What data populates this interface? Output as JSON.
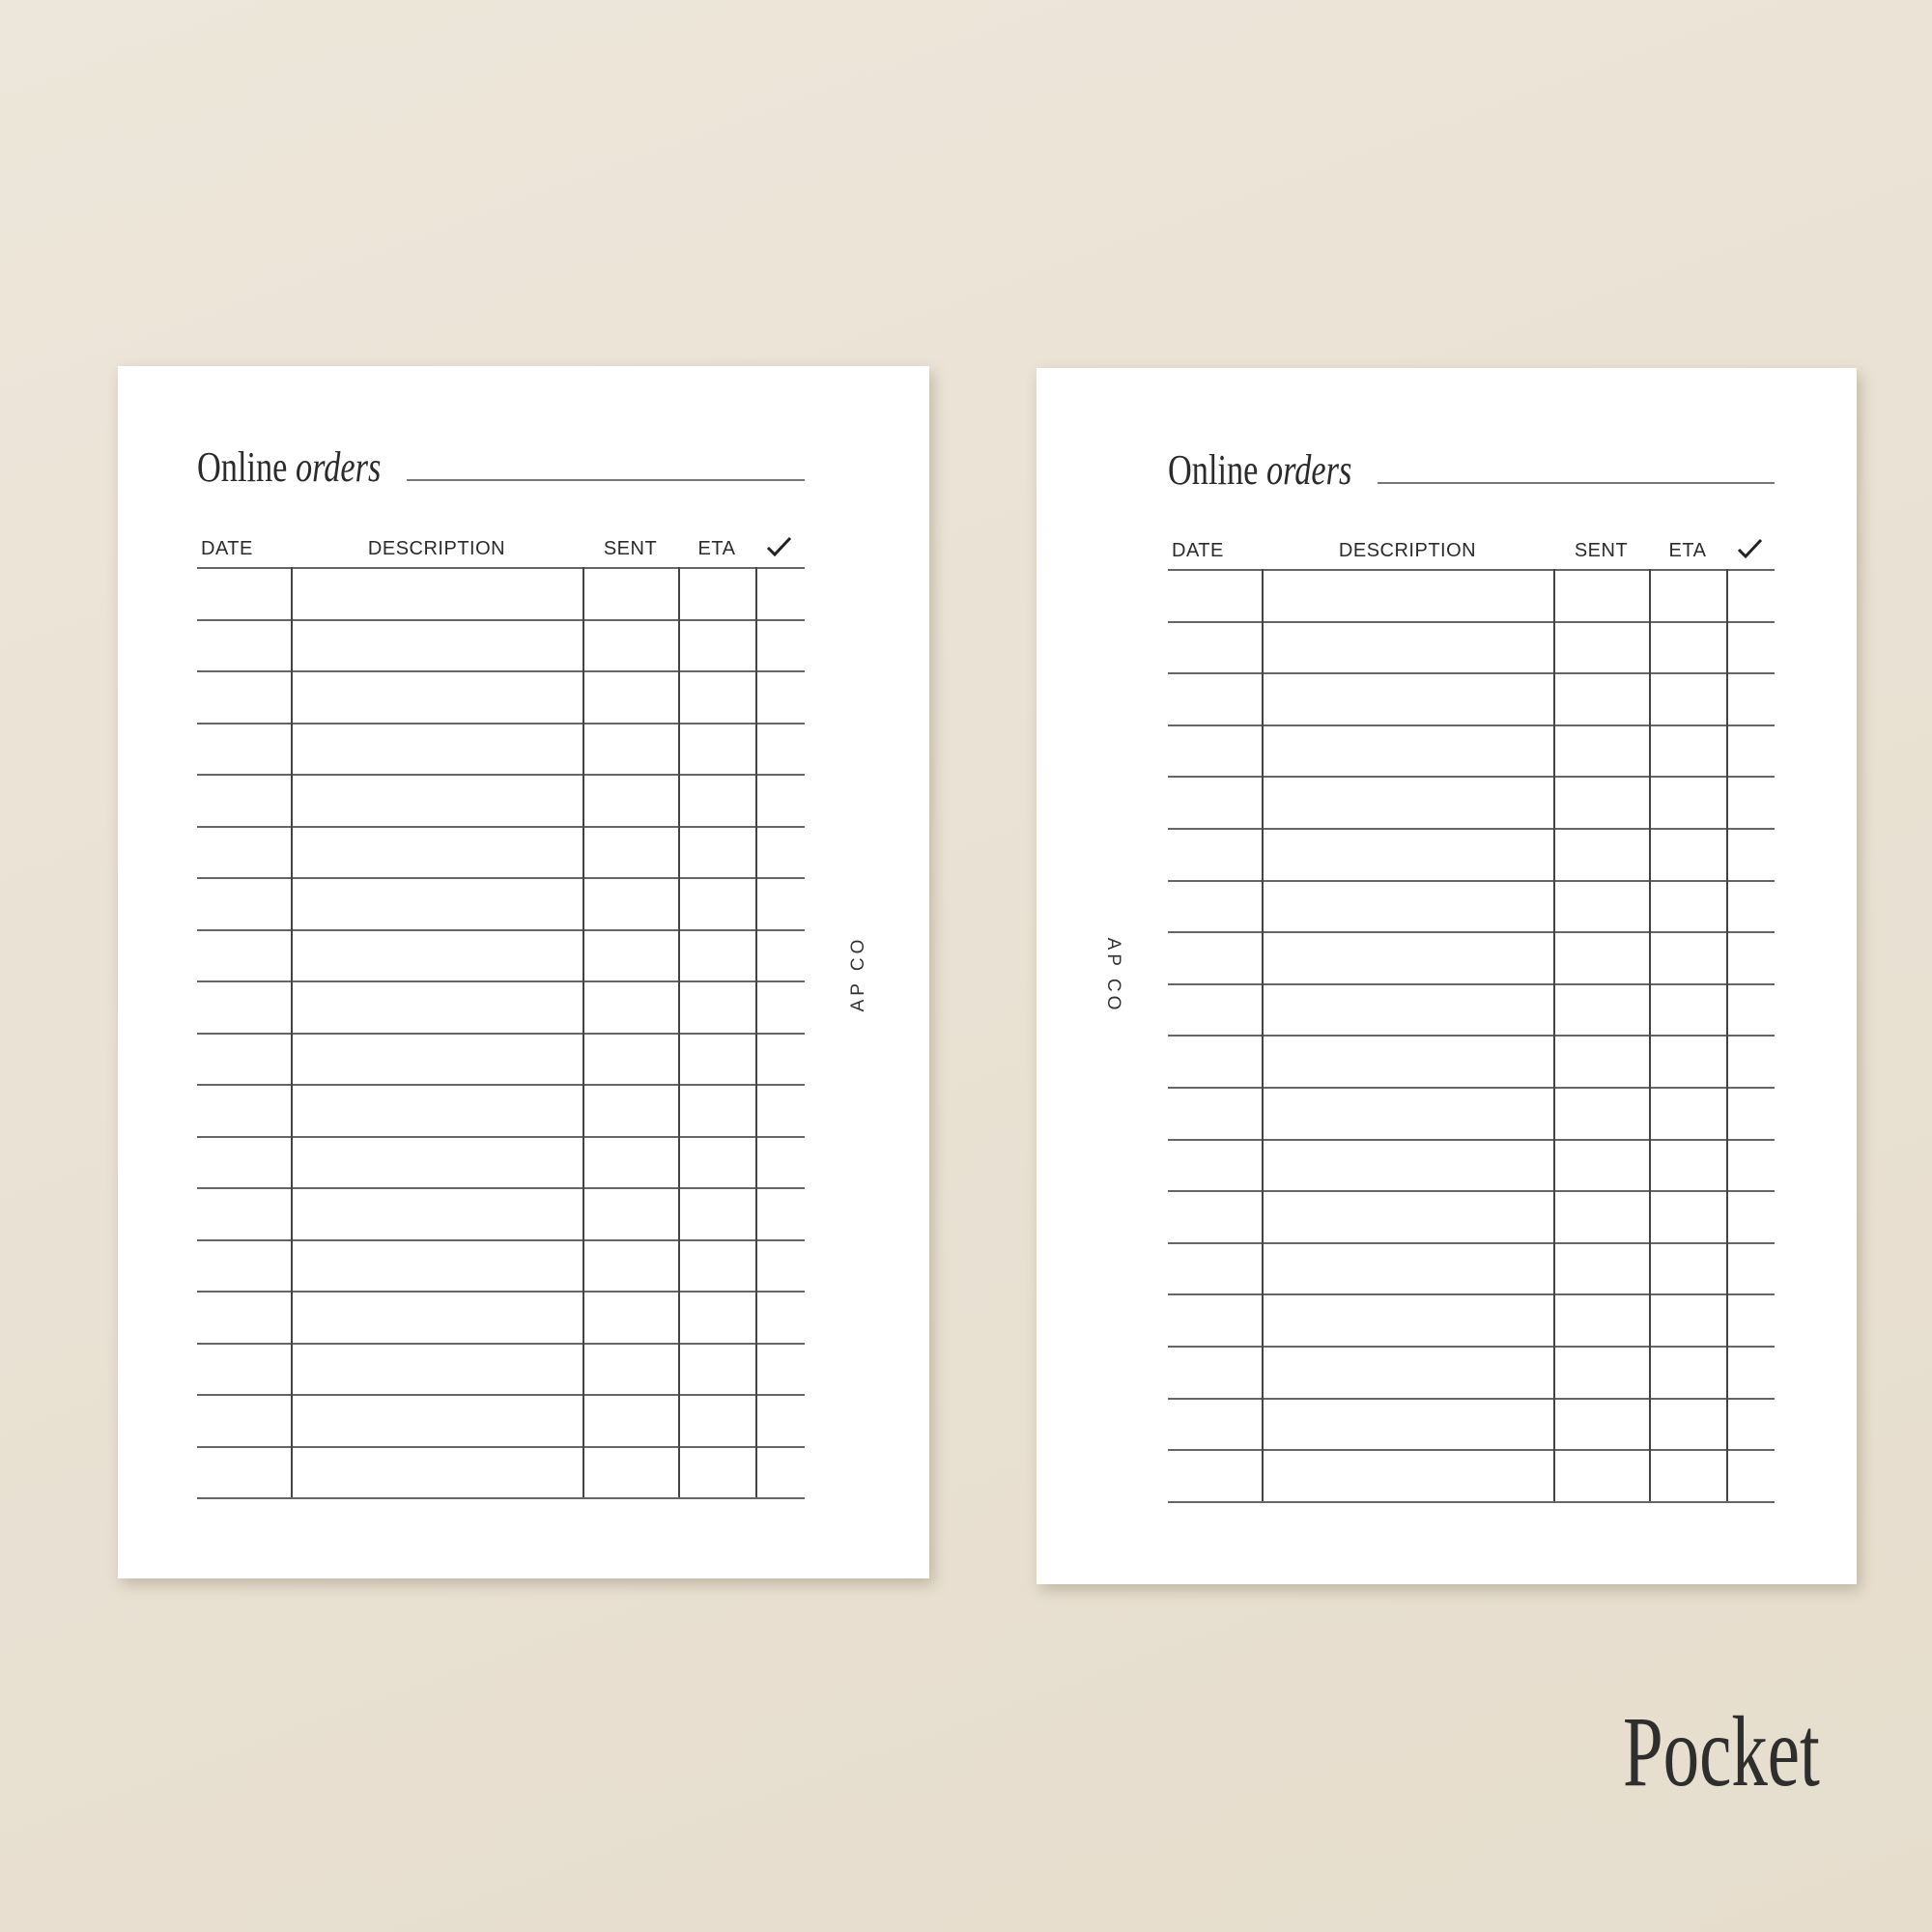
{
  "pages": [
    {
      "title_regular": "Online",
      "title_italic": "orders",
      "headers": [
        "DATE",
        "DESCRIPTION",
        "SENT",
        "ETA"
      ],
      "check_icon": "checkmark-icon",
      "brand": "AP CO",
      "rows": 18
    },
    {
      "title_regular": "Online",
      "title_italic": "orders",
      "headers": [
        "DATE",
        "DESCRIPTION",
        "SENT",
        "ETA"
      ],
      "check_icon": "checkmark-icon",
      "brand": "AP CO",
      "rows": 18
    }
  ],
  "size_label": "Pocket",
  "colors": {
    "background": "#ebe3d6",
    "paper": "#ffffff",
    "ink": "#2b2b2b"
  }
}
